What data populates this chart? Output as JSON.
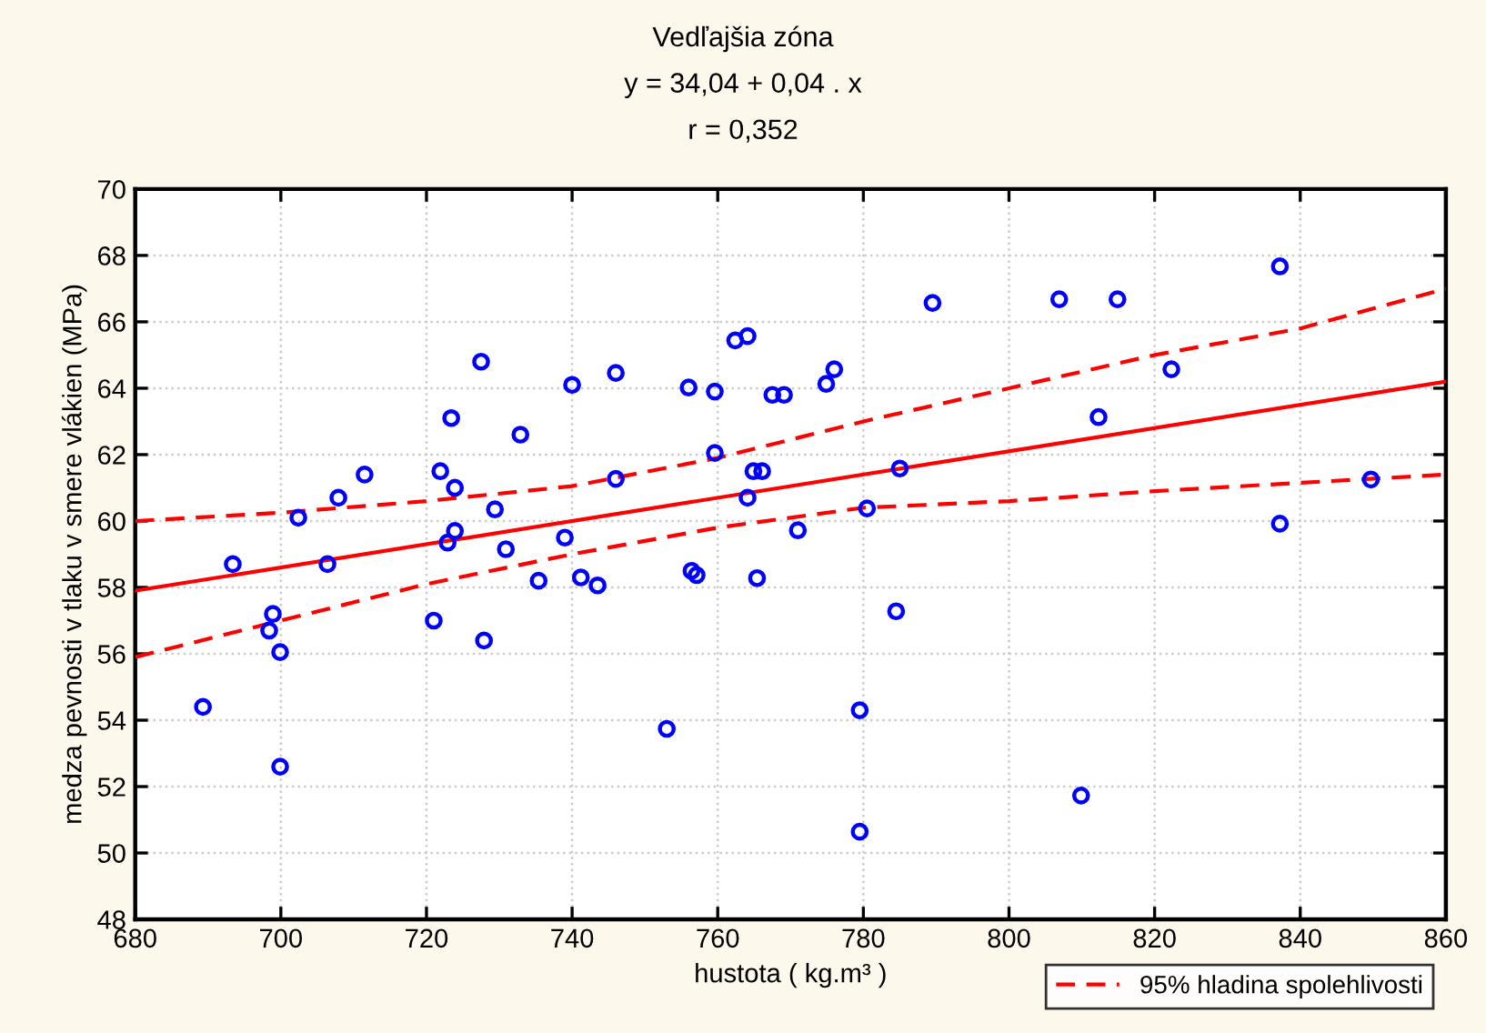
{
  "chart_data": {
    "type": "scatter",
    "title": "Vedľajšia zóna",
    "subtitle": "y = 34,04 + 0,04 . x",
    "annotations": [
      "r = 0,352"
    ],
    "xlabel": "hustota ( kg.m³ )",
    "ylabel": "medza pevnosti v tlaku v smere vlákien (MPa)",
    "xlim": [
      680,
      860
    ],
    "xticks": [
      680,
      700,
      720,
      740,
      760,
      780,
      800,
      820,
      840,
      860
    ],
    "ylim": [
      48,
      70
    ],
    "yticks": [
      48,
      50,
      52,
      54,
      56,
      58,
      60,
      62,
      64,
      66,
      68,
      70
    ],
    "grid": true,
    "legend": "bottom right",
    "series": [
      {
        "color": "#0000ff",
        "marker": "circle",
        "x": [
          689.3,
          693.4,
          698.4,
          698.9,
          699.9,
          699.9,
          702.4,
          706.4,
          707.9,
          711.5,
          721.0,
          721.9,
          722.9,
          723.4,
          723.9,
          723.9,
          727.5,
          727.9,
          729.4,
          730.9,
          732.9,
          735.4,
          739.0,
          740.0,
          741.2,
          743.5,
          746.0,
          746.0,
          753.0,
          756.0,
          756.4,
          757.1,
          759.6,
          759.6,
          762.4,
          764.1,
          764.1,
          764.9,
          766.1,
          765.4,
          767.5,
          769.1,
          771.0,
          774.9,
          776.0,
          780.5,
          779.5,
          779.5,
          784.5,
          785.0,
          789.5,
          806.9,
          814.9,
          809.9,
          812.3,
          822.3,
          837.2,
          837.2,
          849.7
        ],
        "values": [
          54.4,
          58.7,
          56.7,
          57.2,
          56.05,
          52.6,
          60.1,
          58.7,
          60.7,
          61.4,
          57.0,
          61.5,
          59.35,
          63.1,
          61.0,
          59.7,
          64.8,
          56.4,
          60.35,
          59.15,
          62.6,
          58.2,
          59.5,
          64.1,
          58.3,
          58.06,
          64.46,
          61.27,
          53.74,
          64.02,
          58.5,
          58.37,
          63.9,
          62.05,
          65.44,
          65.57,
          60.7,
          61.5,
          61.5,
          58.28,
          63.8,
          63.8,
          59.72,
          64.13,
          64.57,
          60.38,
          54.3,
          50.64,
          57.28,
          61.58,
          66.57,
          66.68,
          66.68,
          51.73,
          63.13,
          64.57,
          67.67,
          59.92,
          61.25
        ]
      },
      {
        "type": "line",
        "color": "#ff0000",
        "line_style": "solid",
        "x": [
          680,
          860
        ],
        "values": [
          57.9,
          64.2
        ]
      },
      {
        "type": "line",
        "name": "95% hladina spolehlivosti",
        "color": "#ff0000",
        "line_style": "dashed",
        "x": [
          680,
          700,
          720,
          740,
          760,
          780,
          800,
          820,
          840,
          860
        ],
        "values": [
          60.0,
          60.25,
          60.6,
          61.05,
          61.9,
          63.0,
          64.0,
          65.0,
          65.8,
          67.0
        ]
      },
      {
        "type": "line",
        "color": "#ff0000",
        "line_style": "dashed",
        "x": [
          680,
          700,
          720,
          740,
          760,
          780,
          800,
          820,
          840,
          860
        ],
        "values": [
          55.9,
          57.0,
          58.1,
          59.0,
          59.8,
          60.4,
          60.6,
          60.9,
          61.15,
          61.4
        ]
      }
    ]
  }
}
